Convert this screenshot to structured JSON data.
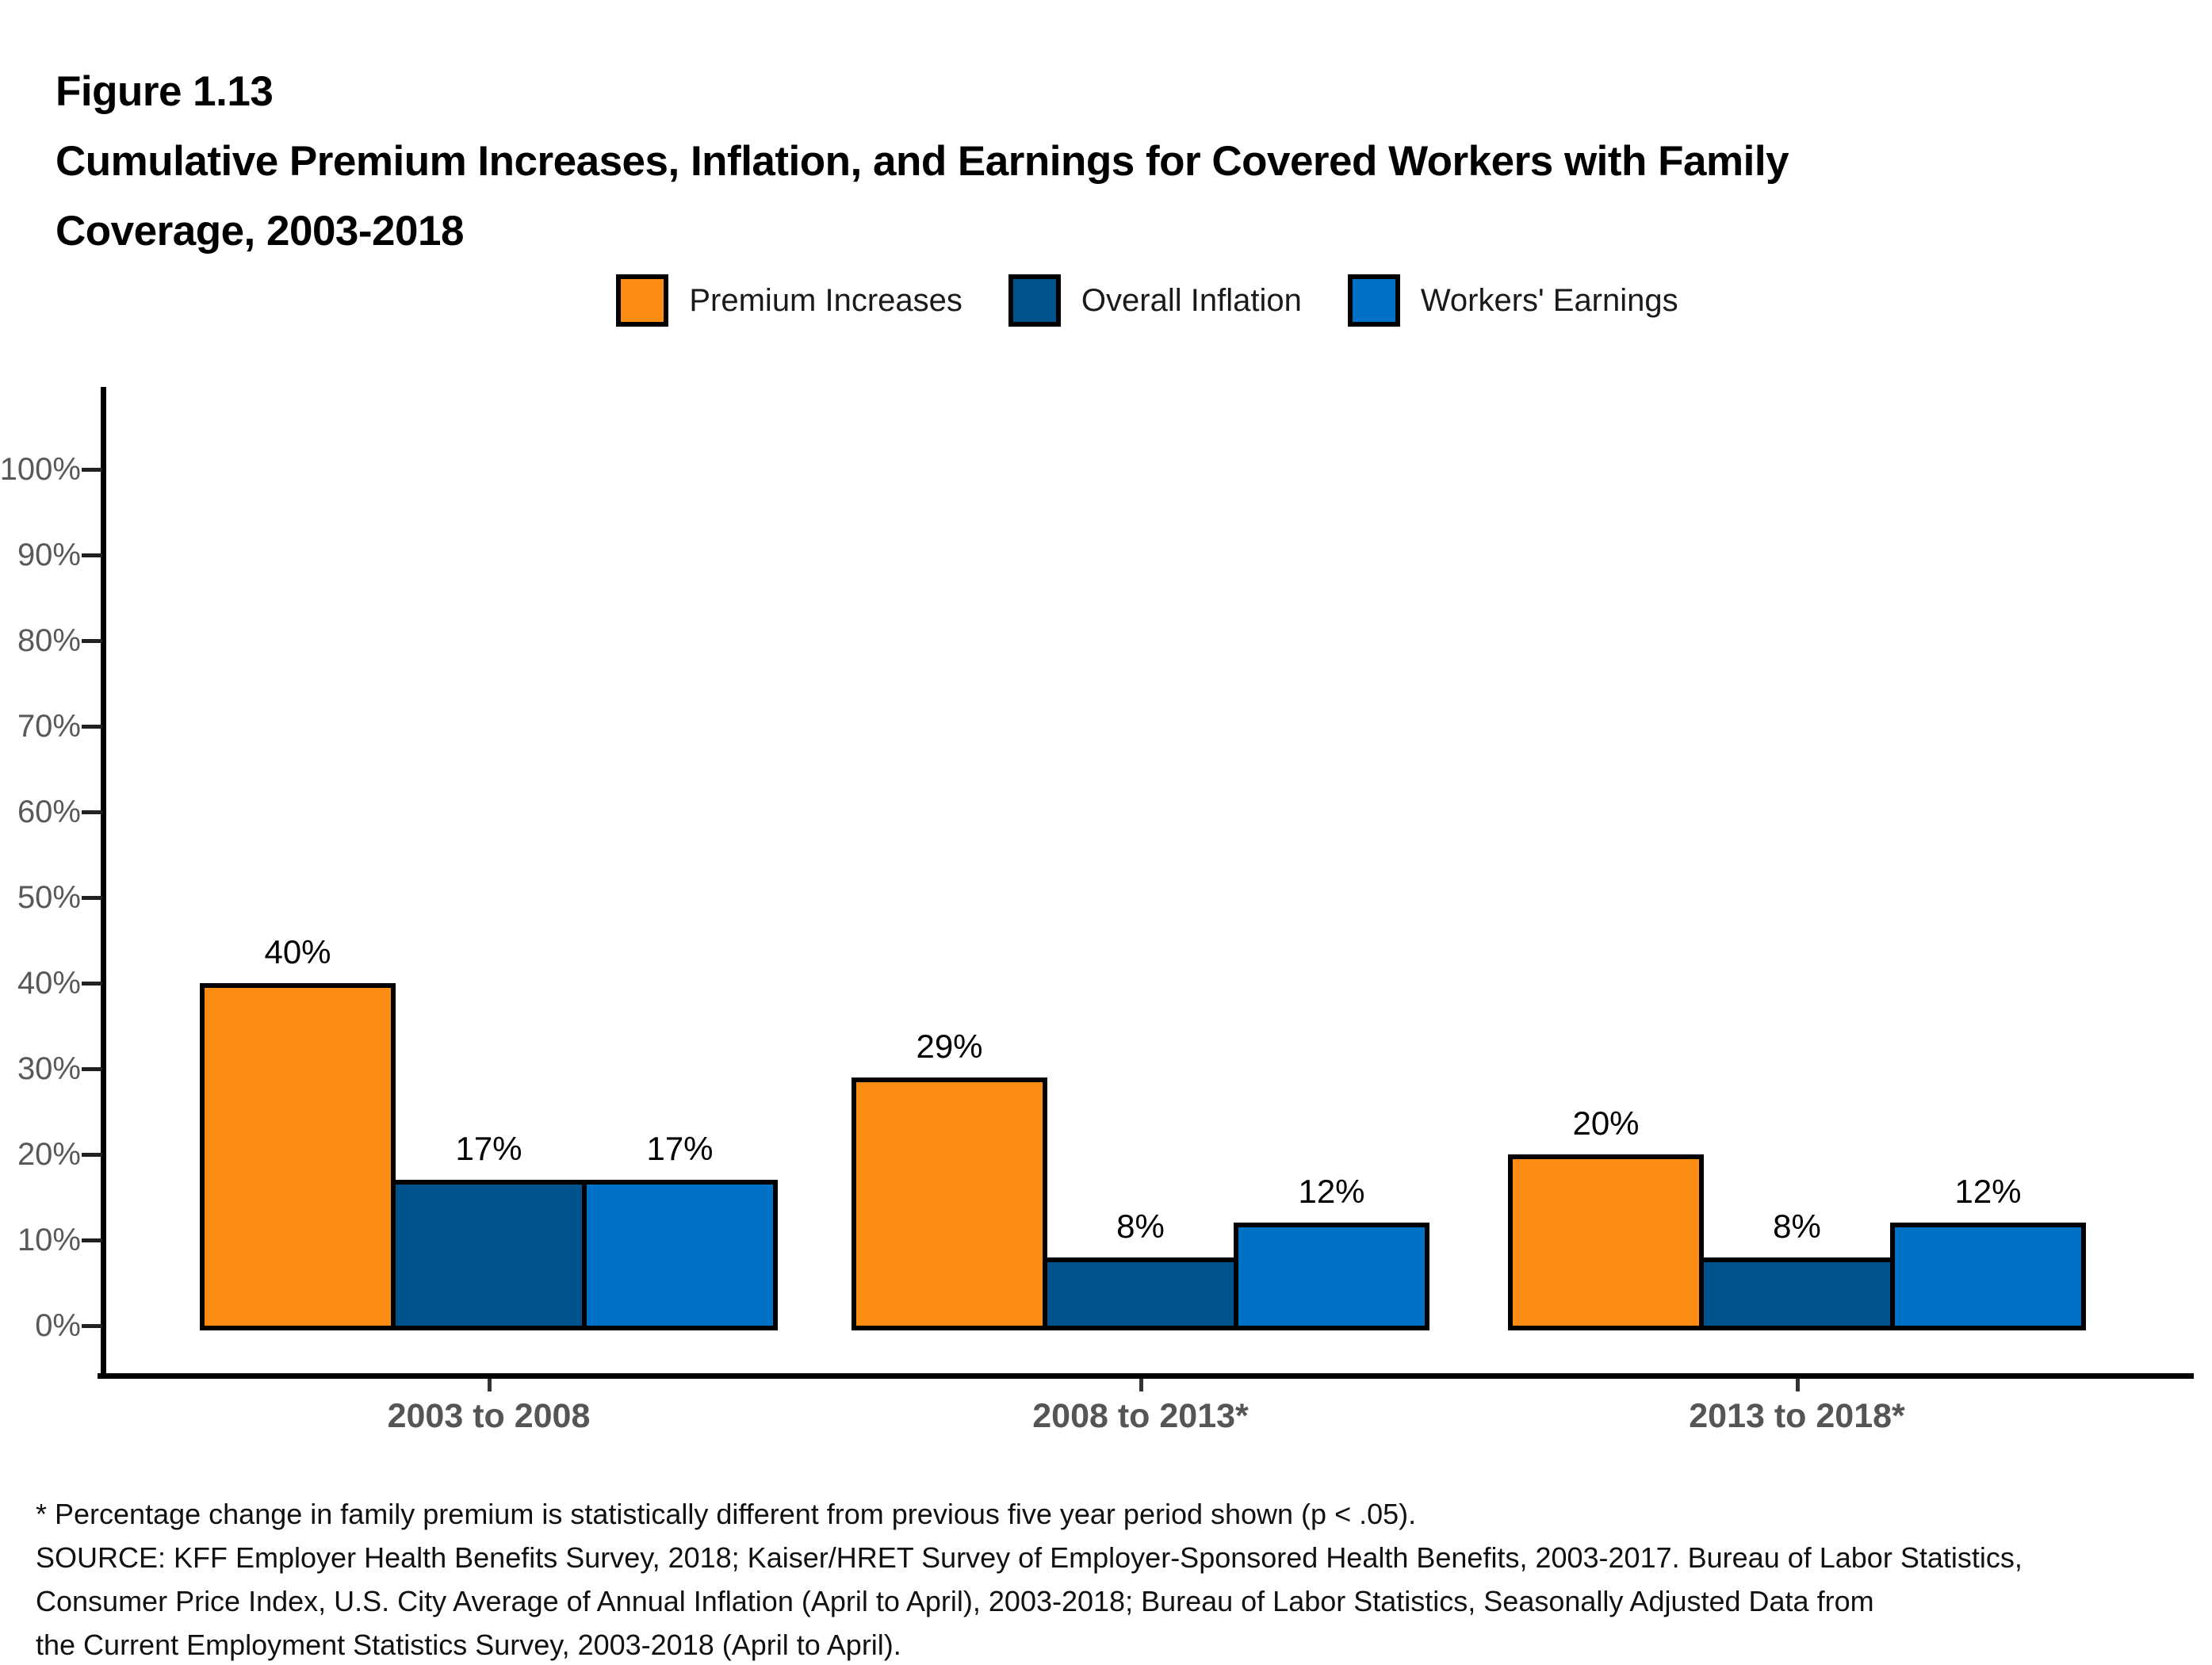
{
  "figure": {
    "label": "Figure 1.13",
    "title_lines": [
      "Cumulative Premium Increases, Inflation, and Earnings for Covered Workers with Family",
      "Coverage, 2003-2018"
    ]
  },
  "legend": [
    {
      "label": "Premium Increases",
      "color": "#FC8D14"
    },
    {
      "label": "Overall Inflation",
      "color": "#00528C"
    },
    {
      "label": "Workers' Earnings",
      "color": "#0072C6"
    }
  ],
  "chart_data": {
    "type": "bar",
    "title": "Cumulative Premium Increases, Inflation, and Earnings for Covered Workers with Family Coverage, 2003-2018",
    "categories": [
      "2003 to 2008",
      "2008 to 2013*",
      "2013 to 2018*"
    ],
    "series": [
      {
        "name": "Premium Increases",
        "color": "#FC8D14",
        "values": [
          40,
          29,
          20
        ]
      },
      {
        "name": "Overall Inflation",
        "color": "#00528C",
        "values": [
          17,
          8,
          8
        ]
      },
      {
        "name": "Workers' Earnings",
        "color": "#0072C6",
        "values": [
          17,
          12,
          12
        ]
      }
    ],
    "value_labels": [
      [
        "40%",
        "17%",
        "17%"
      ],
      [
        "29%",
        "8%",
        "12%"
      ],
      [
        "20%",
        "8%",
        "12%"
      ]
    ],
    "value_label_format": "{v}%",
    "y_axis": {
      "ticks": [
        0,
        10,
        20,
        30,
        40,
        50,
        60,
        70,
        80,
        90,
        100
      ],
      "tick_format": "{v}%",
      "ylim": [
        0,
        108
      ]
    },
    "xlabel": "",
    "ylabel": "",
    "grid": false,
    "legend_position": "top-center",
    "bar_border_color": "#000000"
  },
  "footnotes": [
    "* Percentage change in family premium is statistically different from previous five year period shown (p < .05).",
    "SOURCE: KFF Employer Health Benefits Survey, 2018; Kaiser/HRET Survey of Employer-Sponsored Health Benefits, 2003-2017. Bureau of Labor Statistics,",
    "Consumer Price Index, U.S. City Average of Annual Inflation (April to April), 2003-2018; Bureau of Labor Statistics, Seasonally Adjusted Data from",
    "the Current Employment Statistics Survey, 2003-2018 (April to April)."
  ]
}
